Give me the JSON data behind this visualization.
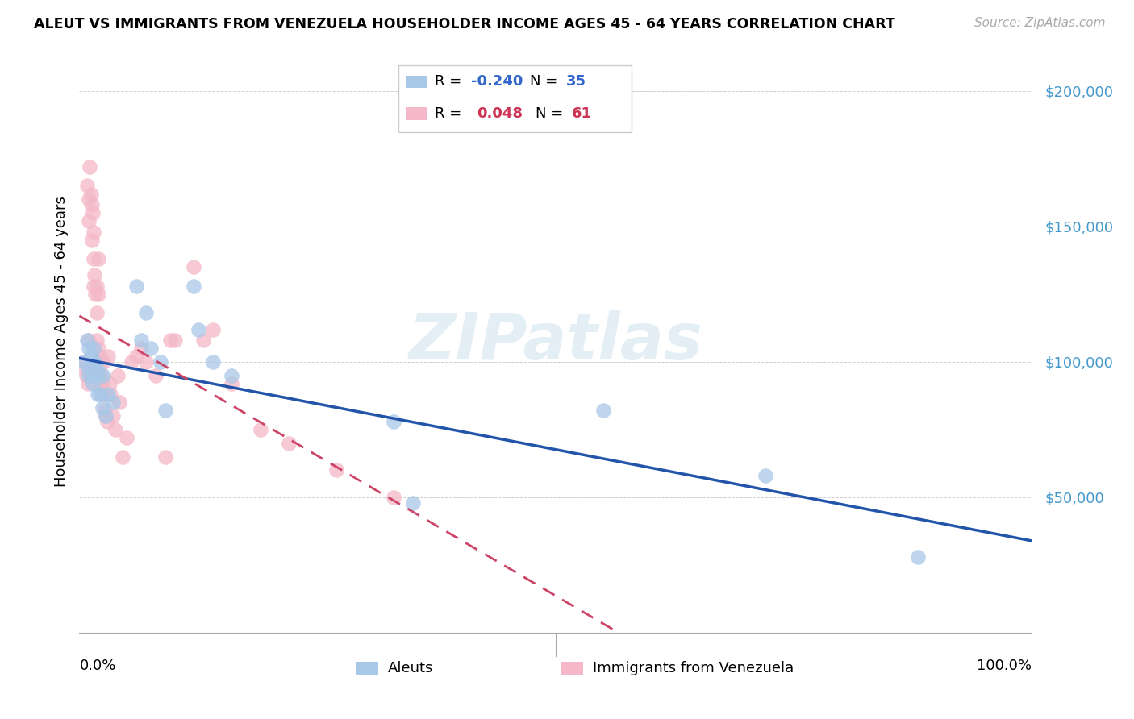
{
  "title": "ALEUT VS IMMIGRANTS FROM VENEZUELA HOUSEHOLDER INCOME AGES 45 - 64 YEARS CORRELATION CHART",
  "source": "Source: ZipAtlas.com",
  "ylabel": "Householder Income Ages 45 - 64 years",
  "legend_blue_r": "-0.240",
  "legend_blue_n": "35",
  "legend_pink_r": "0.048",
  "legend_pink_n": "61",
  "legend_label_blue": "Aleuts",
  "legend_label_pink": "Immigrants from Venezuela",
  "y_ticks": [
    50000,
    100000,
    150000,
    200000
  ],
  "y_tick_labels": [
    "$50,000",
    "$100,000",
    "$150,000",
    "$200,000"
  ],
  "x_range": [
    0,
    1.0
  ],
  "y_range": [
    0,
    215000
  ],
  "blue_color": "#a8c8e8",
  "pink_color": "#f4b8c8",
  "blue_line_color": "#2255aa",
  "pink_line_color": "#cc4466",
  "blue_scatter_x": [
    0.005,
    0.008,
    0.009,
    0.01,
    0.01,
    0.012,
    0.013,
    0.014,
    0.015,
    0.016,
    0.017,
    0.018,
    0.019,
    0.02,
    0.022,
    0.024,
    0.025,
    0.028,
    0.03,
    0.035,
    0.06,
    0.065,
    0.07,
    0.075,
    0.085,
    0.09,
    0.12,
    0.125,
    0.14,
    0.16,
    0.33,
    0.35,
    0.55,
    0.72,
    0.88
  ],
  "blue_scatter_y": [
    100000,
    108000,
    98000,
    105000,
    95000,
    102000,
    95000,
    92000,
    105000,
    100000,
    96000,
    98000,
    88000,
    95000,
    88000,
    83000,
    95000,
    80000,
    88000,
    85000,
    128000,
    108000,
    118000,
    105000,
    100000,
    82000,
    128000,
    112000,
    100000,
    95000,
    78000,
    48000,
    82000,
    58000,
    28000
  ],
  "pink_scatter_x": [
    0.005,
    0.006,
    0.007,
    0.008,
    0.009,
    0.01,
    0.01,
    0.01,
    0.011,
    0.012,
    0.013,
    0.013,
    0.014,
    0.015,
    0.015,
    0.015,
    0.016,
    0.017,
    0.018,
    0.018,
    0.018,
    0.019,
    0.02,
    0.02,
    0.02,
    0.021,
    0.022,
    0.022,
    0.023,
    0.024,
    0.025,
    0.025,
    0.026,
    0.027,
    0.028,
    0.029,
    0.03,
    0.032,
    0.033,
    0.035,
    0.038,
    0.04,
    0.042,
    0.045,
    0.05,
    0.055,
    0.06,
    0.065,
    0.07,
    0.08,
    0.09,
    0.095,
    0.1,
    0.12,
    0.13,
    0.14,
    0.16,
    0.19,
    0.22,
    0.27,
    0.33
  ],
  "pink_scatter_y": [
    100000,
    97000,
    95000,
    165000,
    92000,
    160000,
    152000,
    108000,
    172000,
    162000,
    158000,
    145000,
    155000,
    148000,
    138000,
    128000,
    132000,
    125000,
    128000,
    118000,
    108000,
    100000,
    138000,
    125000,
    105000,
    98000,
    102000,
    92000,
    95000,
    88000,
    100000,
    92000,
    88000,
    82000,
    80000,
    78000,
    102000,
    92000,
    88000,
    80000,
    75000,
    95000,
    85000,
    65000,
    72000,
    100000,
    102000,
    105000,
    100000,
    95000,
    65000,
    108000,
    108000,
    135000,
    108000,
    112000,
    92000,
    75000,
    70000,
    60000,
    50000
  ]
}
